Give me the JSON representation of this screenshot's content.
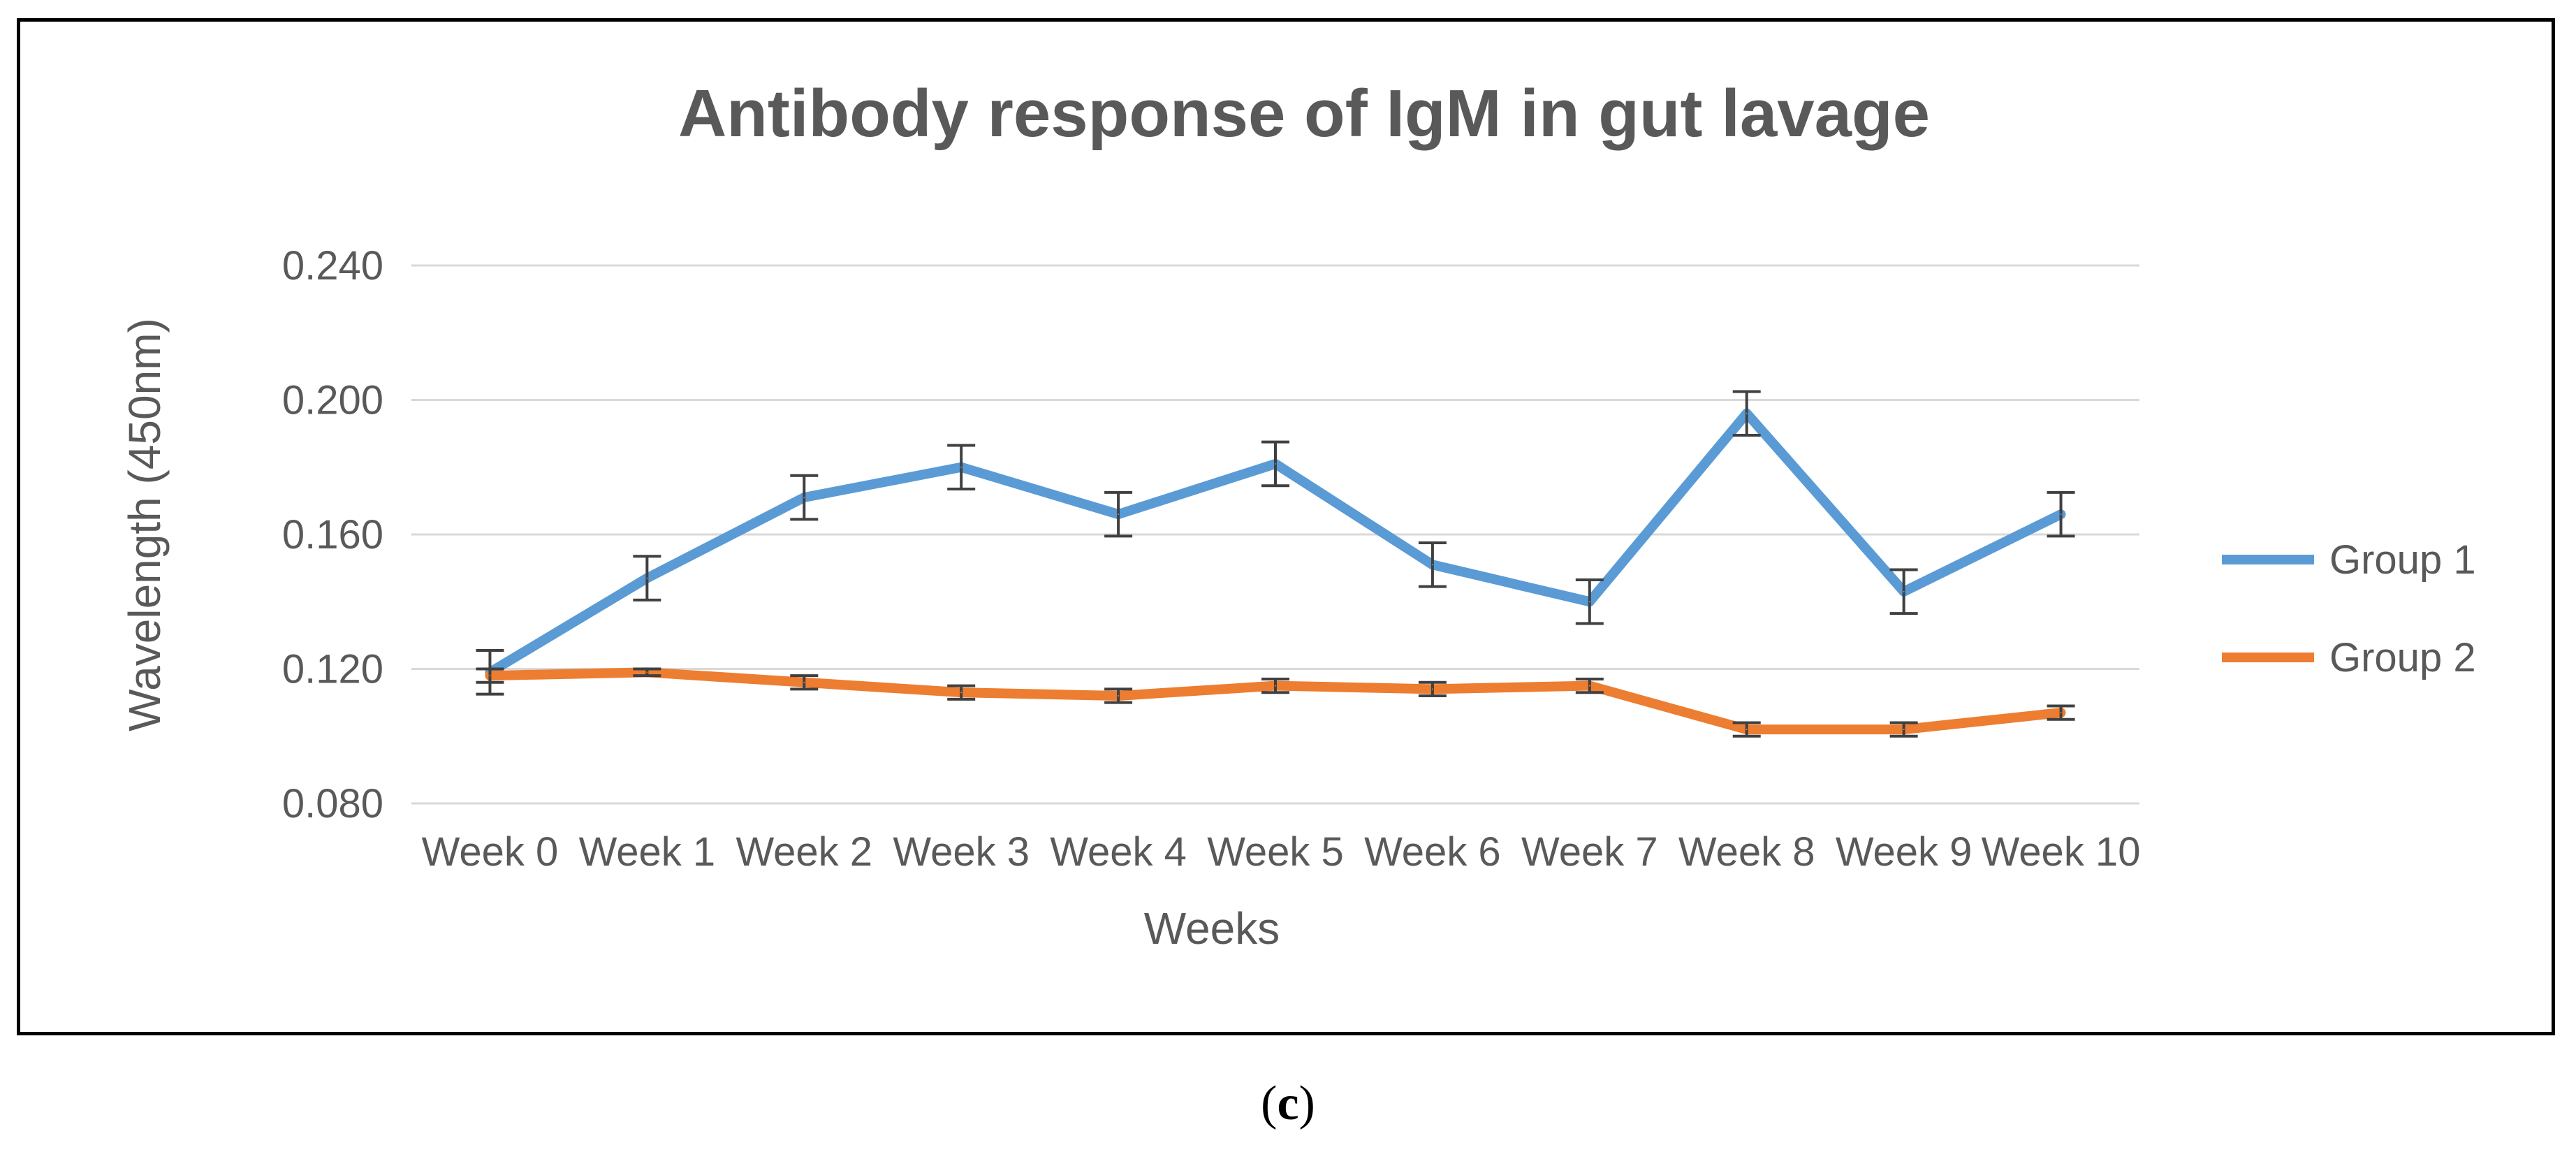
{
  "chart_data": {
    "type": "line",
    "title": "Antibody response of IgM in gut lavage",
    "xlabel": "Weeks",
    "ylabel": "Wavelength (450nm)",
    "categories": [
      "Week 0",
      "Week 1",
      "Week 2",
      "Week 3",
      "Week 4",
      "Week 5",
      "Week 6",
      "Week 7",
      "Week 8",
      "Week 9",
      "Week 10"
    ],
    "ylim": [
      0.08,
      0.24
    ],
    "yticks": [
      "0.080",
      "0.120",
      "0.160",
      "0.200",
      "0.240"
    ],
    "grid": true,
    "legend_position": "right",
    "series": [
      {
        "name": "Group 1",
        "color": "#5B9BD5",
        "values": [
          0.119,
          0.147,
          0.171,
          0.18,
          0.166,
          0.181,
          0.151,
          0.14,
          0.196,
          0.143,
          0.166
        ],
        "errors": [
          0.0065,
          0.0065,
          0.0065,
          0.0065,
          0.0065,
          0.0065,
          0.0065,
          0.0065,
          0.0065,
          0.0065,
          0.0065
        ]
      },
      {
        "name": "Group 2",
        "color": "#ED7D31",
        "values": [
          0.118,
          0.119,
          0.116,
          0.113,
          0.112,
          0.115,
          0.114,
          0.115,
          0.102,
          0.102,
          0.107
        ],
        "errors": [
          0.002,
          0.001,
          0.002,
          0.002,
          0.002,
          0.002,
          0.002,
          0.002,
          0.002,
          0.002,
          0.002
        ]
      }
    ]
  },
  "caption": {
    "open": "(",
    "letter": "c",
    "close": ")"
  }
}
